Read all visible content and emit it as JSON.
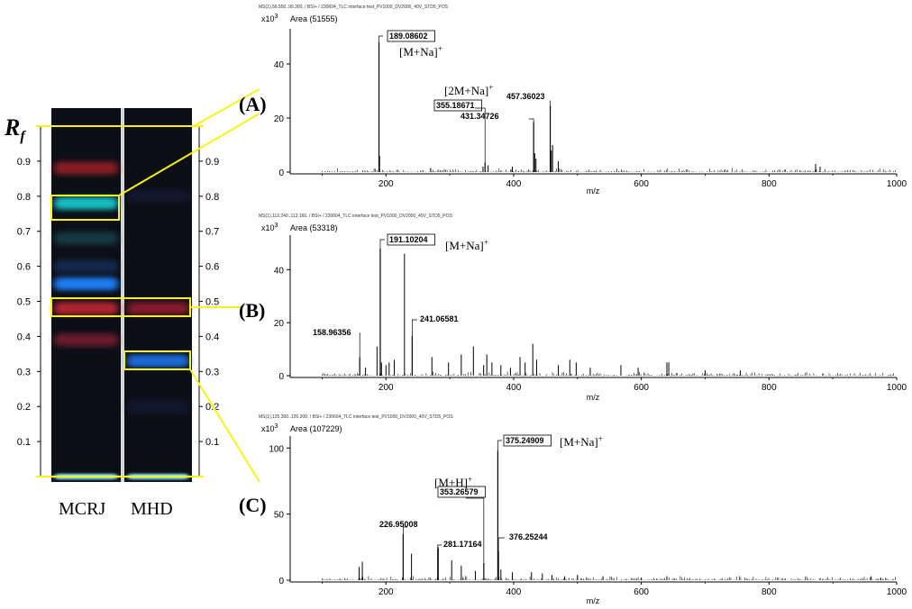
{
  "tlc": {
    "rf_label": "R",
    "rf_sub": "f",
    "rf_ticks": [
      "0.1",
      "0.2",
      "0.3",
      "0.4",
      "0.5",
      "0.6",
      "0.7",
      "0.8",
      "0.9"
    ],
    "rf_values": [
      0.1,
      0.2,
      0.3,
      0.4,
      0.5,
      0.6,
      0.7,
      0.8,
      0.9
    ],
    "lanes": [
      "MCRJ",
      "MHD"
    ],
    "bands": {
      "MCRJ": [
        {
          "rf": 0.88,
          "color": "#b2242c",
          "intensity": 0.75
        },
        {
          "rf": 0.78,
          "color": "#15c7cc",
          "intensity": 0.95
        },
        {
          "rf": 0.68,
          "color": "#1f5560",
          "intensity": 0.6
        },
        {
          "rf": 0.6,
          "color": "#1a4a92",
          "intensity": 0.45
        },
        {
          "rf": 0.55,
          "color": "#1e82ff",
          "intensity": 0.95
        },
        {
          "rf": 0.48,
          "color": "#c22532",
          "intensity": 0.9
        },
        {
          "rf": 0.39,
          "color": "#9a2238",
          "intensity": 0.65
        },
        {
          "rf": 0.0,
          "color": "#8ef0ff",
          "intensity": 1.0
        }
      ],
      "MHD": [
        {
          "rf": 0.8,
          "color": "#23275a",
          "intensity": 0.35
        },
        {
          "rf": 0.48,
          "color": "#a31e32",
          "intensity": 0.8
        },
        {
          "rf": 0.33,
          "color": "#1a6fe0",
          "intensity": 0.95
        },
        {
          "rf": 0.2,
          "color": "#1a2560",
          "intensity": 0.35
        },
        {
          "rf": 0.0,
          "color": "#8ef0ff",
          "intensity": 1.0
        }
      ]
    },
    "highlight_color": "#f7f21a"
  },
  "panels": [
    {
      "id": "A",
      "label": "(A)",
      "header": "MS(1),56.550..99.300, / BSI+ / 230604_TLC interface test_PV1000_DV2000_40V_STD5_POS",
      "y_unit": "x10",
      "y_unit_exp": "3",
      "area_text": "Area (51555)",
      "xlabel": "m/z",
      "ylim": [
        0,
        52
      ],
      "yticks": [
        0,
        20,
        40
      ],
      "peaks_labeled": [
        {
          "mz": 189.08602,
          "label": "189.08602",
          "y": 48,
          "boxed": true
        },
        {
          "mz": 355.18671,
          "label": "355.18671",
          "y": 3.5,
          "boxed": true
        },
        {
          "mz": 431.34726,
          "label": "431.34726",
          "y": 18.5,
          "boxed": false
        },
        {
          "mz": 457.36023,
          "label": "457.36023",
          "y": 24.5,
          "boxed": false
        }
      ],
      "peaks_minor": [
        [
          190,
          6
        ],
        [
          270,
          1.5
        ],
        [
          352,
          2
        ],
        [
          360,
          2.5
        ],
        [
          398,
          2
        ],
        [
          433,
          7
        ],
        [
          435,
          5
        ],
        [
          459,
          8
        ],
        [
          461,
          10
        ],
        [
          470,
          4
        ],
        [
          873,
          3
        ],
        [
          880,
          2
        ]
      ],
      "annotations": [
        {
          "text": "[M+Na]",
          "sup": "+"
        },
        {
          "text": "[2M+Na]",
          "sup": "+"
        }
      ]
    },
    {
      "id": "B",
      "label": "(B)",
      "header": "MS(1),112.240..113.160, / BSI+ / 230604_TLC interface test_PV1000_DV2000_40V_STD5_POS",
      "y_unit": "x10",
      "y_unit_exp": "3",
      "area_text": "Area (53318)",
      "xlabel": "m/z",
      "ylim": [
        0,
        52
      ],
      "yticks": [
        0,
        20,
        40
      ],
      "peaks_labeled": [
        {
          "mz": 191.10204,
          "label": "191.10204",
          "y": 48,
          "boxed": true
        },
        {
          "mz": 158.96356,
          "label": "158.96356",
          "y": 7,
          "boxed": false
        },
        {
          "mz": 241.06581,
          "label": "241.06581",
          "y": 15,
          "boxed": false
        }
      ],
      "peaks_minor": [
        [
          168,
          3
        ],
        [
          186,
          11
        ],
        [
          193,
          5
        ],
        [
          200,
          4
        ],
        [
          205,
          5
        ],
        [
          213,
          6
        ],
        [
          229,
          46
        ],
        [
          272,
          7
        ],
        [
          298,
          5
        ],
        [
          318,
          8
        ],
        [
          337,
          11
        ],
        [
          353,
          4
        ],
        [
          358,
          8
        ],
        [
          366,
          5
        ],
        [
          380,
          4
        ],
        [
          395,
          3
        ],
        [
          410,
          7
        ],
        [
          418,
          5
        ],
        [
          430,
          12
        ],
        [
          436,
          6
        ],
        [
          470,
          4
        ],
        [
          488,
          6
        ],
        [
          498,
          5
        ],
        [
          520,
          3
        ],
        [
          568,
          4
        ],
        [
          595,
          3
        ],
        [
          640,
          5
        ],
        [
          643,
          5
        ],
        [
          700,
          2
        ],
        [
          755,
          2
        ]
      ],
      "annotations": [
        {
          "text": "[M+Na]",
          "sup": "+"
        }
      ]
    },
    {
      "id": "C",
      "label": "(C)",
      "header": "MS(1),125.300..126.200, / BSI+ / 230604_TLC interface test_PV1000_DV2000_40V_STD5_POS",
      "y_unit": "x10",
      "y_unit_exp": "3",
      "area_text": "Area (107229)",
      "xlabel": "m/z",
      "ylim": [
        0,
        107
      ],
      "yticks": [
        0,
        50,
        100
      ],
      "peaks_labeled": [
        {
          "mz": 375.24909,
          "label": "375.24909",
          "y": 98,
          "boxed": true
        },
        {
          "mz": 353.26579,
          "label": "353.26579",
          "y": 13,
          "boxed": true
        },
        {
          "mz": 226.95008,
          "label": "226.95008",
          "y": 35,
          "boxed": false
        },
        {
          "mz": 281.17164,
          "label": "281.17164",
          "y": 24,
          "boxed": false
        },
        {
          "mz": 376.25244,
          "label": "376.25244",
          "y": 22,
          "boxed": false
        }
      ],
      "peaks_minor": [
        [
          158,
          10
        ],
        [
          163,
          14
        ],
        [
          240,
          20
        ],
        [
          282,
          25
        ],
        [
          303,
          15
        ],
        [
          318,
          11
        ],
        [
          340,
          7
        ],
        [
          380,
          8
        ],
        [
          398,
          6
        ],
        [
          428,
          6
        ],
        [
          445,
          5
        ],
        [
          460,
          4
        ],
        [
          480,
          3
        ],
        [
          500,
          4
        ],
        [
          540,
          3
        ],
        [
          600,
          2
        ],
        [
          640,
          3
        ],
        [
          960,
          3
        ],
        [
          975,
          2
        ]
      ],
      "annotations": [
        {
          "text": "[M+Na]",
          "sup": "+"
        },
        {
          "text": "[M+H]",
          "sup": "+"
        }
      ]
    }
  ],
  "chart_data": [
    {
      "type": "bar",
      "title": "Area (51555)",
      "xlabel": "m/z",
      "ylabel": "x10^3",
      "xlim": [
        50,
        1000
      ],
      "ylim": [
        0,
        52
      ],
      "x": [
        189.08602,
        355.18671,
        431.34726,
        457.36023
      ],
      "values": [
        48,
        3.5,
        18.5,
        24.5
      ]
    },
    {
      "type": "bar",
      "title": "Area (53318)",
      "xlabel": "m/z",
      "ylabel": "x10^3",
      "xlim": [
        50,
        1000
      ],
      "ylim": [
        0,
        52
      ],
      "x": [
        158.96356,
        191.10204,
        241.06581
      ],
      "values": [
        7,
        48,
        15
      ]
    },
    {
      "type": "bar",
      "title": "Area (107229)",
      "xlabel": "m/z",
      "ylabel": "x10^3",
      "xlim": [
        50,
        1000
      ],
      "ylim": [
        0,
        107
      ],
      "x": [
        226.95008,
        281.17164,
        353.26579,
        375.24909,
        376.25244
      ],
      "values": [
        35,
        24,
        13,
        98,
        22
      ]
    }
  ],
  "x_axis": {
    "min": 50,
    "max": 1000,
    "ticks": [
      "200",
      "400",
      "600",
      "800",
      "1000"
    ],
    "tick_values": [
      200,
      400,
      600,
      800,
      1000
    ]
  }
}
